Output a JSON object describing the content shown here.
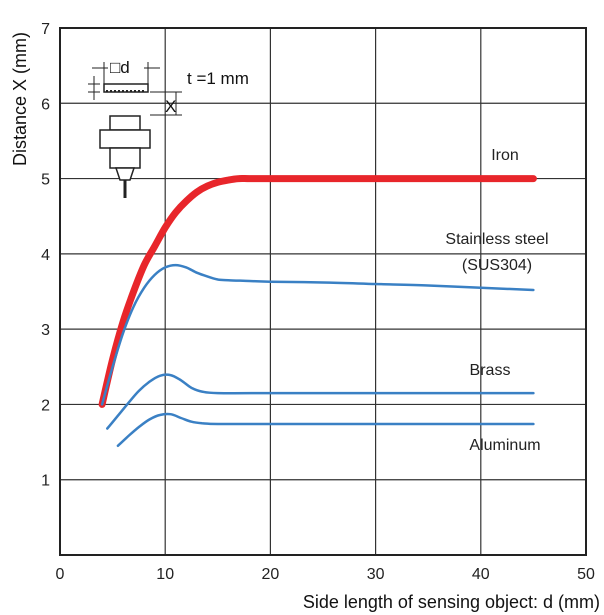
{
  "chart_data": {
    "type": "line",
    "xlabel": "Side length of sensing object: d (mm)",
    "ylabel": "Distance X (mm)",
    "xlim": [
      0,
      50
    ],
    "ylim": [
      0,
      7
    ],
    "xticks": [
      "0",
      "10",
      "20",
      "30",
      "40",
      "50"
    ],
    "yticks": [
      "1",
      "2",
      "3",
      "4",
      "5",
      "6",
      "7"
    ],
    "grid": true,
    "inset": {
      "side_label": "□d",
      "thickness_label": "t =1 mm",
      "distance_label": "X"
    },
    "series": [
      {
        "name": "Iron",
        "label_lines": [
          "Iron"
        ],
        "color": "#e8262b",
        "x": [
          4,
          5,
          6,
          7,
          8,
          9,
          10,
          11,
          12,
          13,
          14,
          15,
          16,
          17,
          18,
          20,
          25,
          30,
          35,
          40,
          45
        ],
        "y": [
          2.0,
          2.6,
          3.1,
          3.5,
          3.85,
          4.1,
          4.35,
          4.55,
          4.7,
          4.82,
          4.9,
          4.95,
          4.98,
          5.0,
          5.0,
          5.0,
          5.0,
          5.0,
          5.0,
          5.0,
          5.0
        ]
      },
      {
        "name": "Stainless steel (SUS304)",
        "label_lines": [
          "Stainless steel",
          "(SUS304)"
        ],
        "color": "#3a80c4",
        "x": [
          4,
          5,
          6,
          7,
          8,
          9,
          10,
          11,
          12,
          13,
          14,
          15,
          16,
          18,
          20,
          25,
          30,
          35,
          40,
          45
        ],
        "y": [
          2.0,
          2.5,
          2.95,
          3.3,
          3.55,
          3.72,
          3.82,
          3.85,
          3.82,
          3.75,
          3.7,
          3.66,
          3.65,
          3.64,
          3.63,
          3.62,
          3.6,
          3.58,
          3.55,
          3.52
        ]
      },
      {
        "name": "Brass",
        "label_lines": [
          "Brass"
        ],
        "color": "#3a80c4",
        "x": [
          4.5,
          5.5,
          6.5,
          7.5,
          8.5,
          9.5,
          10.5,
          11.5,
          12.5,
          13.5,
          15,
          20,
          25,
          30,
          35,
          40,
          45
        ],
        "y": [
          1.68,
          1.85,
          2.02,
          2.18,
          2.3,
          2.38,
          2.39,
          2.32,
          2.22,
          2.17,
          2.15,
          2.15,
          2.15,
          2.15,
          2.15,
          2.15,
          2.15
        ]
      },
      {
        "name": "Aluminum",
        "label_lines": [
          "Aluminum"
        ],
        "color": "#3a80c4",
        "x": [
          5.5,
          6.5,
          7.5,
          8.5,
          9.5,
          10.5,
          11.5,
          12.5,
          13.5,
          15,
          20,
          25,
          30,
          35,
          40,
          45
        ],
        "y": [
          1.45,
          1.58,
          1.7,
          1.8,
          1.86,
          1.87,
          1.82,
          1.77,
          1.75,
          1.74,
          1.74,
          1.74,
          1.74,
          1.74,
          1.74,
          1.74
        ]
      }
    ]
  }
}
